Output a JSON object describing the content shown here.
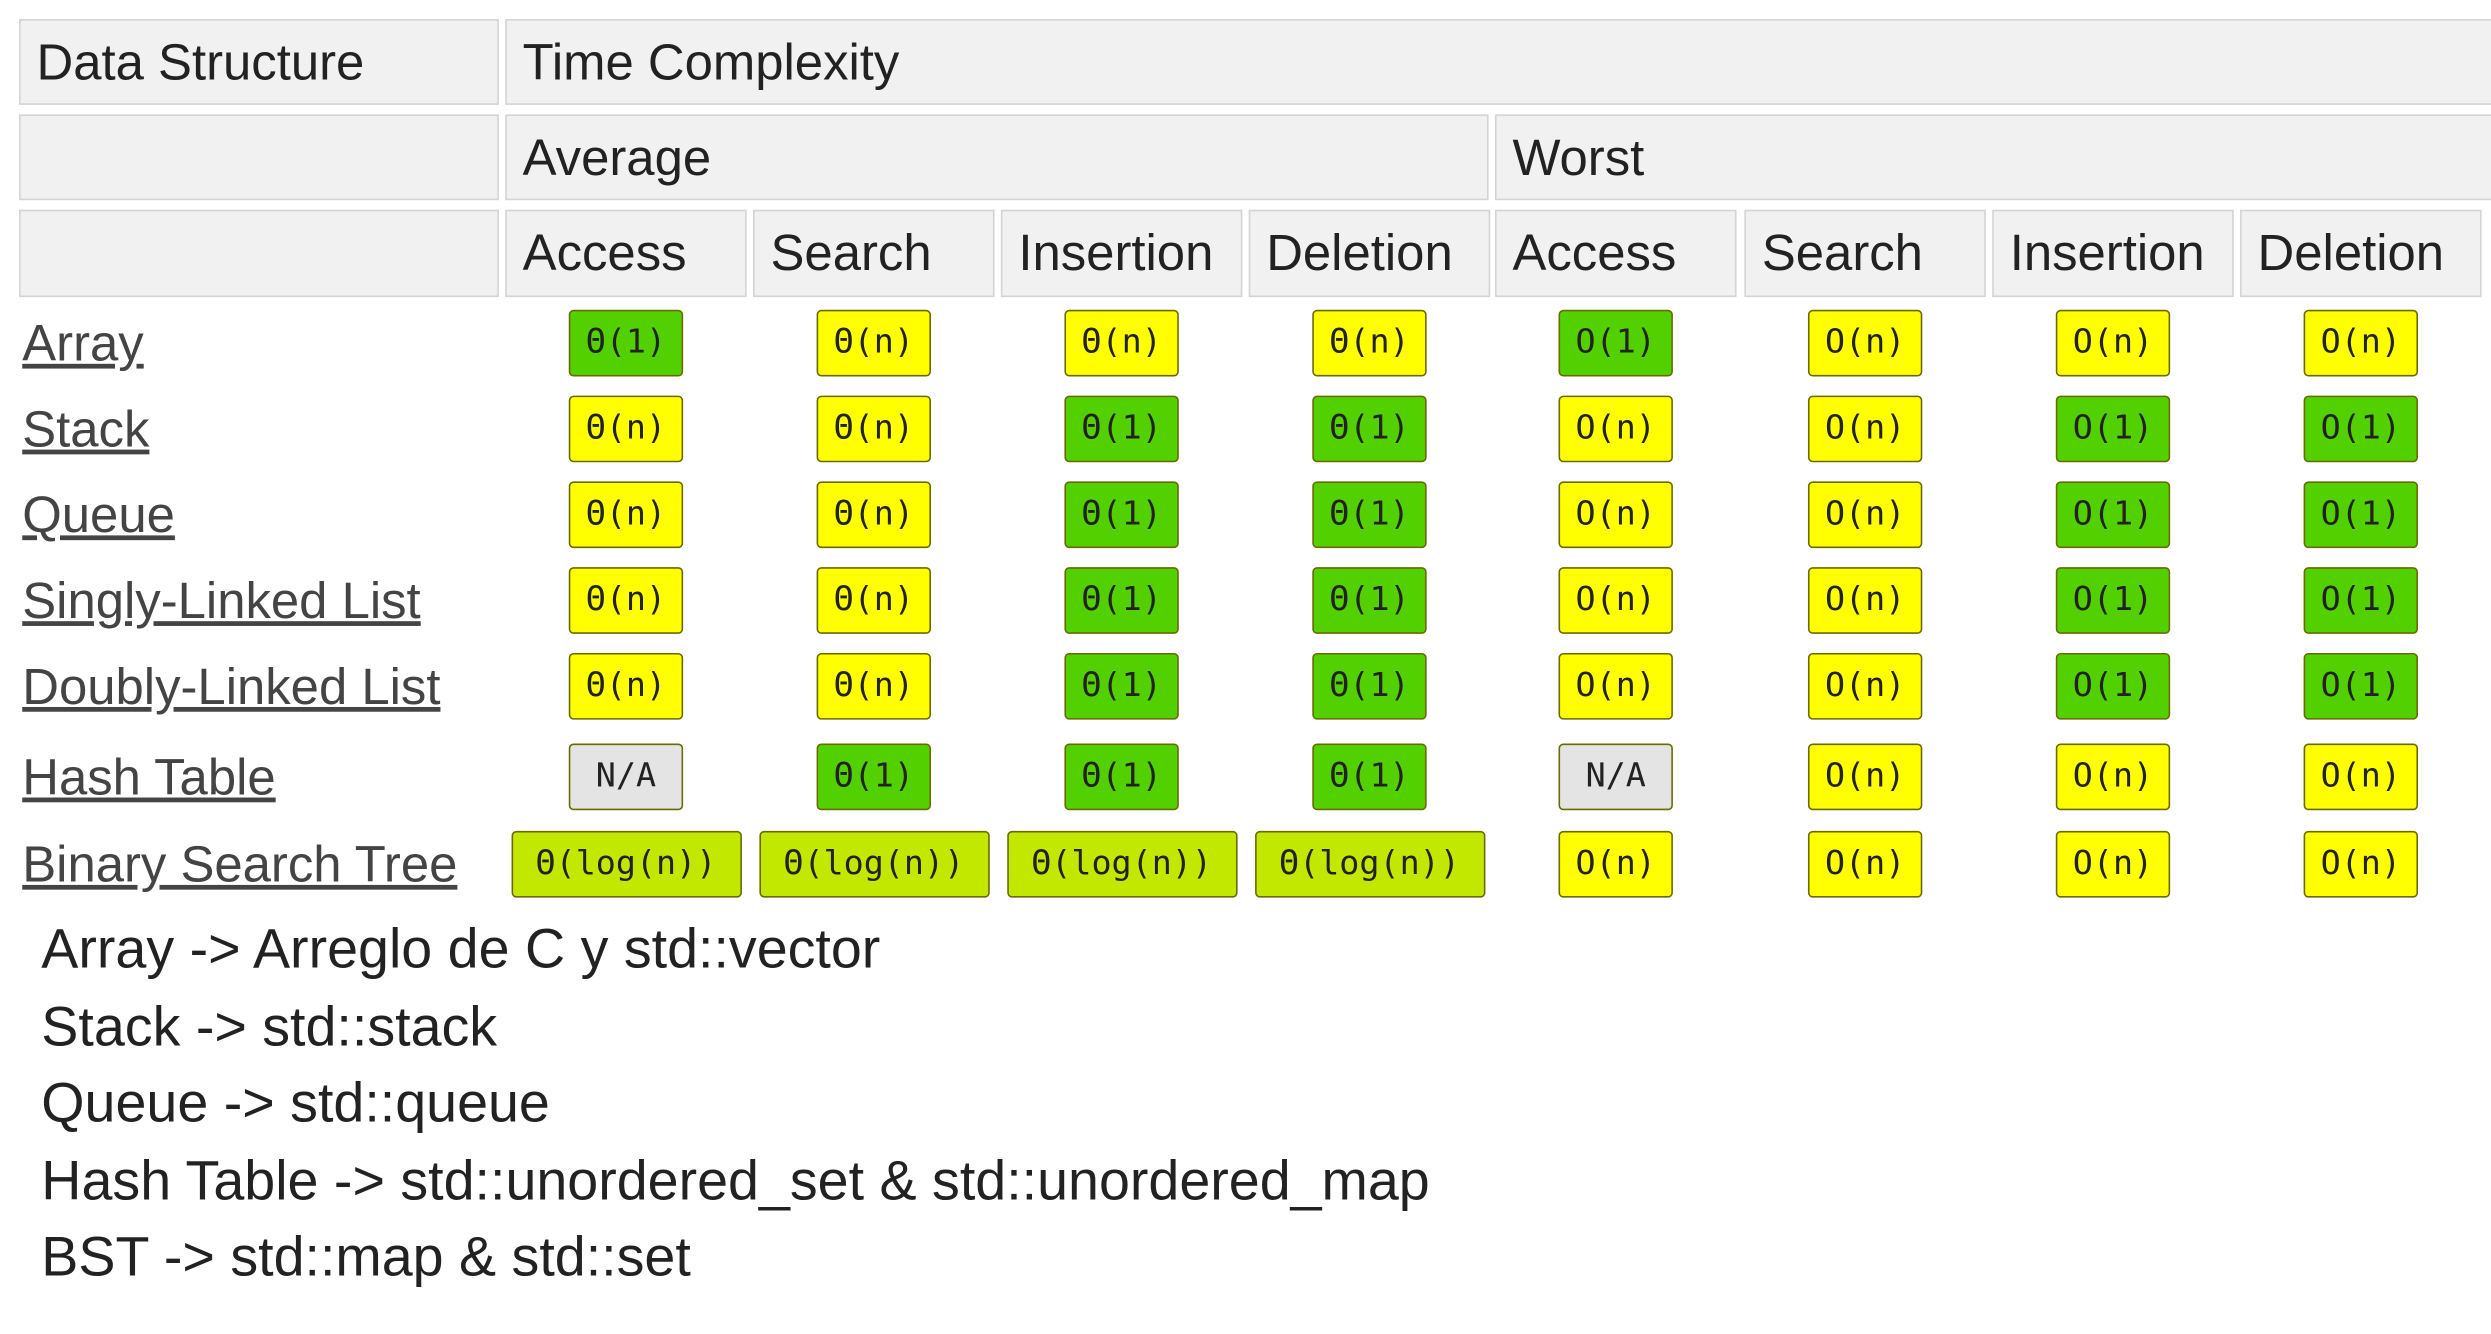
{
  "header": {
    "first": "Data Structure",
    "title": "Time Complexity",
    "groups": [
      "Average",
      "Worst"
    ],
    "columns": [
      "Access",
      "Search",
      "Insertion",
      "Deletion",
      "Access",
      "Search",
      "Insertion",
      "Deletion"
    ]
  },
  "table": {
    "rows": [
      {
        "name": "Array",
        "cells": [
          {
            "text": "Θ(1)",
            "color": "#53d000"
          },
          {
            "text": "Θ(n)",
            "color": "#ffff00"
          },
          {
            "text": "Θ(n)",
            "color": "#ffff00"
          },
          {
            "text": "Θ(n)",
            "color": "#ffff00"
          },
          {
            "text": "O(1)",
            "color": "#53d000"
          },
          {
            "text": "O(n)",
            "color": "#ffff00"
          },
          {
            "text": "O(n)",
            "color": "#ffff00"
          },
          {
            "text": "O(n)",
            "color": "#ffff00"
          }
        ]
      },
      {
        "name": "Stack",
        "cells": [
          {
            "text": "Θ(n)",
            "color": "#ffff00"
          },
          {
            "text": "Θ(n)",
            "color": "#ffff00"
          },
          {
            "text": "Θ(1)",
            "color": "#53d000"
          },
          {
            "text": "Θ(1)",
            "color": "#53d000"
          },
          {
            "text": "O(n)",
            "color": "#ffff00"
          },
          {
            "text": "O(n)",
            "color": "#ffff00"
          },
          {
            "text": "O(1)",
            "color": "#53d000"
          },
          {
            "text": "O(1)",
            "color": "#53d000"
          }
        ]
      },
      {
        "name": "Queue",
        "cells": [
          {
            "text": "Θ(n)",
            "color": "#ffff00"
          },
          {
            "text": "Θ(n)",
            "color": "#ffff00"
          },
          {
            "text": "Θ(1)",
            "color": "#53d000"
          },
          {
            "text": "Θ(1)",
            "color": "#53d000"
          },
          {
            "text": "O(n)",
            "color": "#ffff00"
          },
          {
            "text": "O(n)",
            "color": "#ffff00"
          },
          {
            "text": "O(1)",
            "color": "#53d000"
          },
          {
            "text": "O(1)",
            "color": "#53d000"
          }
        ]
      },
      {
        "name": "Singly-Linked List",
        "cells": [
          {
            "text": "Θ(n)",
            "color": "#ffff00"
          },
          {
            "text": "Θ(n)",
            "color": "#ffff00"
          },
          {
            "text": "Θ(1)",
            "color": "#53d000"
          },
          {
            "text": "Θ(1)",
            "color": "#53d000"
          },
          {
            "text": "O(n)",
            "color": "#ffff00"
          },
          {
            "text": "O(n)",
            "color": "#ffff00"
          },
          {
            "text": "O(1)",
            "color": "#53d000"
          },
          {
            "text": "O(1)",
            "color": "#53d000"
          }
        ]
      },
      {
        "name": "Doubly-Linked List",
        "cells": [
          {
            "text": "Θ(n)",
            "color": "#ffff00"
          },
          {
            "text": "Θ(n)",
            "color": "#ffff00"
          },
          {
            "text": "Θ(1)",
            "color": "#53d000"
          },
          {
            "text": "Θ(1)",
            "color": "#53d000"
          },
          {
            "text": "O(n)",
            "color": "#ffff00"
          },
          {
            "text": "O(n)",
            "color": "#ffff00"
          },
          {
            "text": "O(1)",
            "color": "#53d000"
          },
          {
            "text": "O(1)",
            "color": "#53d000"
          }
        ]
      },
      {
        "name": "Hash Table",
        "cells": [
          {
            "text": "N/A",
            "color": "#e4e4e4"
          },
          {
            "text": "Θ(1)",
            "color": "#53d000"
          },
          {
            "text": "Θ(1)",
            "color": "#53d000"
          },
          {
            "text": "Θ(1)",
            "color": "#53d000"
          },
          {
            "text": "N/A",
            "color": "#e4e4e4"
          },
          {
            "text": "O(n)",
            "color": "#ffff00"
          },
          {
            "text": "O(n)",
            "color": "#ffff00"
          },
          {
            "text": "O(n)",
            "color": "#ffff00"
          }
        ]
      },
      {
        "name": "Binary Search Tree",
        "cells": [
          {
            "text": "Θ(log(n))",
            "color": "#c3e800"
          },
          {
            "text": "Θ(log(n))",
            "color": "#c3e800"
          },
          {
            "text": "Θ(log(n))",
            "color": "#c3e800"
          },
          {
            "text": "Θ(log(n))",
            "color": "#c3e800"
          },
          {
            "text": "O(n)",
            "color": "#ffff00"
          },
          {
            "text": "O(n)",
            "color": "#ffff00"
          },
          {
            "text": "O(n)",
            "color": "#ffff00"
          },
          {
            "text": "O(n)",
            "color": "#ffff00"
          }
        ]
      }
    ]
  },
  "notes": [
    "Array -> Arreglo de C y std::vector",
    "Stack -> std::stack",
    "Queue -> std::queue",
    "Hash Table -> std::unordered_set & std::unordered_map",
    "BST -> std::map & std::set"
  ]
}
